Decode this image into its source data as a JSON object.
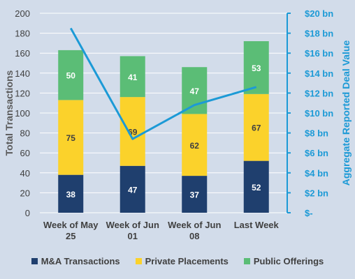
{
  "chart_data": {
    "type": "bar",
    "stacked": true,
    "categories": [
      [
        "Week of May",
        "25"
      ],
      [
        "Week of Jun",
        "01"
      ],
      [
        "Week of Jun",
        "08"
      ],
      [
        "Last Week"
      ]
    ],
    "series": [
      {
        "name": "M&A Transactions",
        "values": [
          38,
          47,
          37,
          52
        ],
        "color": "#1f3f6e",
        "label_color": "#ffffff"
      },
      {
        "name": "Private Placements",
        "values": [
          75,
          69,
          62,
          67
        ],
        "color": "#fbd22b",
        "label_color": "#404040"
      },
      {
        "name": "Public Offerings",
        "values": [
          50,
          41,
          47,
          53
        ],
        "color": "#5bbd76",
        "label_color": "#ffffff"
      }
    ],
    "line": {
      "name": "Aggregate Reported Deal Value",
      "values": [
        18.5,
        7.4,
        10.8,
        12.6
      ],
      "color": "#1c9ad6"
    },
    "ylabel": "Total Transactions",
    "ylabel_right": "Aggregate Reported Deal Value",
    "ylim": [
      0,
      200
    ],
    "y_ticks": [
      "0",
      "20",
      "40",
      "60",
      "80",
      "100",
      "120",
      "140",
      "160",
      "180",
      "200"
    ],
    "ylim_right": [
      0,
      20
    ],
    "y_ticks_right": [
      "$-",
      "$2 bn",
      "$4 bn",
      "$6 bn",
      "$8 bn",
      "$10 bn",
      "$12 bn",
      "$14 bn",
      "$16 bn",
      "$18 bn",
      "$20 bn"
    ],
    "grid": true,
    "legend_position": "bottom"
  }
}
